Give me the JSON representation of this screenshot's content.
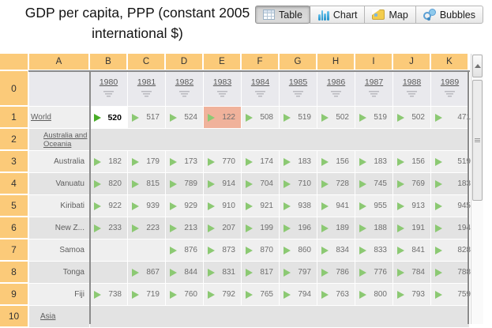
{
  "title": {
    "line1": "GDP per capita, PPP (constant 2005",
    "line2": "international $)"
  },
  "tabs": [
    {
      "label": "Table",
      "icon": "table-icon",
      "active": true
    },
    {
      "label": "Chart",
      "icon": "chart-icon",
      "active": false
    },
    {
      "label": "Map",
      "icon": "map-icon",
      "active": false
    },
    {
      "label": "Bubbles",
      "icon": "bubbles-icon",
      "active": false
    }
  ],
  "grid": {
    "column_letters": [
      "A",
      "B",
      "C",
      "D",
      "E",
      "F",
      "G",
      "H",
      "I",
      "J",
      "K"
    ],
    "row0_number": "0",
    "years": [
      "1980",
      "1981",
      "1982",
      "1983",
      "1984",
      "1985",
      "1986",
      "1987",
      "1988",
      "1989"
    ],
    "rows": [
      {
        "num": "1",
        "label": "World",
        "style": "world",
        "link": true,
        "values": [
          "520",
          "517",
          "524",
          "122",
          "508",
          "519",
          "502",
          "519",
          "502",
          "471"
        ],
        "selected_index": 0,
        "highlight_index": 3
      },
      {
        "num": "2",
        "label": "Australia and Oceania",
        "style": "region",
        "link": true,
        "values": []
      },
      {
        "num": "3",
        "label": "Australia",
        "style": "country",
        "link": false,
        "values": [
          "182",
          "179",
          "173",
          "770",
          "174",
          "183",
          "156",
          "183",
          "156",
          "519"
        ]
      },
      {
        "num": "4",
        "label": "Vanuatu",
        "style": "country",
        "link": false,
        "values": [
          "820",
          "815",
          "789",
          "914",
          "704",
          "710",
          "728",
          "745",
          "769",
          "183"
        ]
      },
      {
        "num": "5",
        "label": "Kiribati",
        "style": "country",
        "link": false,
        "values": [
          "922",
          "939",
          "929",
          "910",
          "921",
          "938",
          "941",
          "955",
          "913",
          "945"
        ]
      },
      {
        "num": "6",
        "label": "New Z...",
        "style": "country",
        "link": false,
        "values": [
          "233",
          "223",
          "213",
          "207",
          "199",
          "196",
          "189",
          "188",
          "191",
          "194"
        ]
      },
      {
        "num": "7",
        "label": "Samoa",
        "style": "country",
        "link": false,
        "values": [
          "",
          "",
          "876",
          "873",
          "870",
          "860",
          "834",
          "833",
          "841",
          "828"
        ]
      },
      {
        "num": "8",
        "label": "Tonga",
        "style": "country",
        "link": false,
        "values": [
          "",
          "867",
          "844",
          "831",
          "817",
          "797",
          "786",
          "776",
          "784",
          "788"
        ]
      },
      {
        "num": "9",
        "label": "Fiji",
        "style": "country",
        "link": false,
        "values": [
          "738",
          "719",
          "760",
          "792",
          "765",
          "794",
          "763",
          "800",
          "793",
          "759"
        ]
      },
      {
        "num": "10",
        "label": "Asia",
        "style": "region-single",
        "link": true,
        "values": []
      }
    ]
  },
  "colors": {
    "header_orange": "#fbca79",
    "highlight_cell": "#f0b29b",
    "selected_cell": "#ffffff",
    "arrow_green": "#8cc973",
    "arrow_green_selected": "#48ad27",
    "row_light": "#efefef",
    "row_dark": "#e3e3e3"
  }
}
